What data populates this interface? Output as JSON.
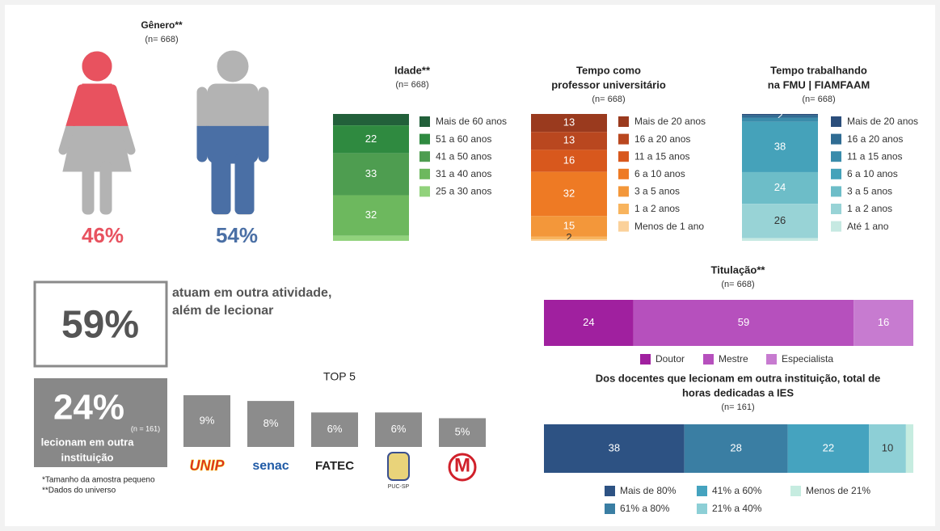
{
  "chart_data": [
    {
      "type": "pictogram",
      "title": "Gênero**",
      "subtitle": "(n= 668)",
      "values": [
        46,
        54
      ],
      "value_labels": [
        "46%",
        "54%"
      ],
      "colors": [
        "#e8525f",
        "#4a6fa5"
      ],
      "fill_from": [
        "top",
        "bottom"
      ]
    },
    {
      "type": "stacked_column",
      "title": "Idade**",
      "subtitle": "(n= 668)",
      "series": [
        {
          "name": "Mais de 60 anos",
          "color": "#22603a",
          "values": [
            9
          ],
          "labels": false
        },
        {
          "name": "51 a 60 anos",
          "color": "#2f8a40",
          "values": [
            22
          ]
        },
        {
          "name": "41 a 50 anos",
          "color": "#4e9d50",
          "values": [
            33
          ]
        },
        {
          "name": "31 a 40 anos",
          "color": "#6db85e",
          "values": [
            32
          ]
        },
        {
          "name": "25 a 30 anos",
          "color": "#91d27c",
          "values": [
            4
          ],
          "labels": false
        }
      ]
    },
    {
      "type": "stacked_column",
      "title": [
        "Tempo como",
        "professor universitário"
      ],
      "subtitle": "(n= 668)",
      "series": [
        {
          "name": "Mais de 20 anos",
          "color": "#9a3a1e",
          "values": [
            13
          ]
        },
        {
          "name": "16 a 20 anos",
          "color": "#b9471f",
          "values": [
            13
          ]
        },
        {
          "name": "11 a 15 anos",
          "color": "#d8581d",
          "values": [
            16
          ]
        },
        {
          "name": "6 a 10 anos",
          "color": "#ee7a24",
          "values": [
            32
          ]
        },
        {
          "name": "3 a 5 anos",
          "color": "#f3973a",
          "values": [
            15
          ]
        },
        {
          "name": "1 a 2 anos",
          "color": "#f8b45e",
          "values": [
            2
          ]
        },
        {
          "name": "Menos de 1 ano",
          "color": "#fbd19a",
          "values": [
            1
          ],
          "labels": false
        }
      ]
    },
    {
      "type": "stacked_column",
      "title": [
        "Tempo trabalhando",
        "na FMU | FIAMFAAM"
      ],
      "subtitle": "(n= 668)",
      "series": [
        {
          "name": "Mais de 20 anos",
          "color": "#2b4e7b",
          "values": [
            1
          ],
          "labels": false
        },
        {
          "name": "16 a 20 anos",
          "color": "#2f6c93",
          "values": [
            2
          ]
        },
        {
          "name": "11 a 15 anos",
          "color": "#3a8cab",
          "values": [
            3
          ],
          "labels": false
        },
        {
          "name": "6 a 10 anos",
          "color": "#45a2ba",
          "values": [
            38
          ]
        },
        {
          "name": "3 a 5 anos",
          "color": "#6dbdc8",
          "values": [
            24
          ]
        },
        {
          "name": "1 a 2 anos",
          "color": "#98d3d6",
          "values": [
            26
          ]
        },
        {
          "name": "Até 1 ano",
          "color": "#c6e9e2",
          "values": [
            2
          ],
          "labels": false
        }
      ]
    },
    {
      "type": "stacked_row",
      "title": "Titulação**",
      "subtitle": "(n= 668)",
      "series": [
        {
          "name": "Doutor",
          "color": "#a0209f",
          "values": [
            24
          ]
        },
        {
          "name": "Mestre",
          "color": "#b650bd",
          "values": [
            59
          ]
        },
        {
          "name": "Especialista",
          "color": "#c77bd0",
          "values": [
            16
          ]
        }
      ]
    },
    {
      "type": "stacked_row",
      "title": [
        "Dos docentes que lecionam em outra instituição, total de",
        "horas dedicadas a IES"
      ],
      "subtitle": "(n= 161)",
      "series": [
        {
          "name": "Mais de 80%",
          "color": "#2d5283",
          "values": [
            38
          ]
        },
        {
          "name": "61% a 80%",
          "color": "#3a7ea3",
          "values": [
            28
          ]
        },
        {
          "name": "41% a 60%",
          "color": "#45a3bf",
          "values": [
            22
          ]
        },
        {
          "name": "21% a 40%",
          "color": "#8dcfd6",
          "values": [
            10
          ]
        },
        {
          "name": "Menos de 21%",
          "color": "#c6ece0",
          "values": [
            2
          ],
          "labels": false
        }
      ]
    },
    {
      "type": "bar",
      "title": "TOP 5",
      "categories": [
        "UNIP",
        "senac",
        "FATEC",
        "PUC-SP",
        "M"
      ],
      "values": [
        9,
        8,
        6,
        6,
        5
      ],
      "value_labels": [
        "9%",
        "8%",
        "6%",
        "6%",
        "5%"
      ],
      "color": "#8c8c8c"
    }
  ],
  "highlights": [
    {
      "label": "59%",
      "text": [
        "atuam em outra atividade,",
        "além de lecionar"
      ]
    },
    {
      "label": "24%",
      "note": "(n = 161)",
      "text": [
        "lecionam em outra",
        "instituição"
      ]
    }
  ],
  "notes": [
    "*Tamanho da amostra pequeno",
    "**Dados do universo"
  ]
}
